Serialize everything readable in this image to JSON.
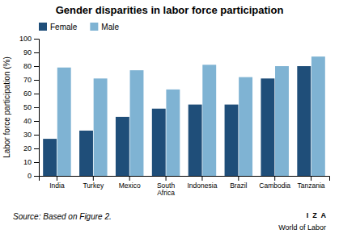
{
  "chart_data": {
    "type": "bar",
    "title": "Gender disparities in labor force participation",
    "y_label": "Labor force participation (%)",
    "categories": [
      "India",
      "Turkey",
      "Mexico",
      "South\nAfrica",
      "Indonesia",
      "Brazil",
      "Cambodia",
      "Tanzania"
    ],
    "series": [
      {
        "name": "Female",
        "color": "#1F4E79",
        "values": [
          27,
          33,
          43,
          49,
          52,
          52,
          71,
          80
        ]
      },
      {
        "name": "Male",
        "color": "#7FB3D3",
        "values": [
          79,
          71,
          77,
          63,
          81,
          72,
          80,
          87
        ]
      }
    ],
    "ylim": [
      0,
      100
    ],
    "yticks": [
      0,
      10,
      20,
      30,
      40,
      50,
      60,
      70,
      80,
      90,
      100
    ],
    "grid": false,
    "legend": "upper left",
    "annotations": [
      "Source: Based on Figure 2.",
      "I  Z  A",
      "World of Labor"
    ]
  }
}
